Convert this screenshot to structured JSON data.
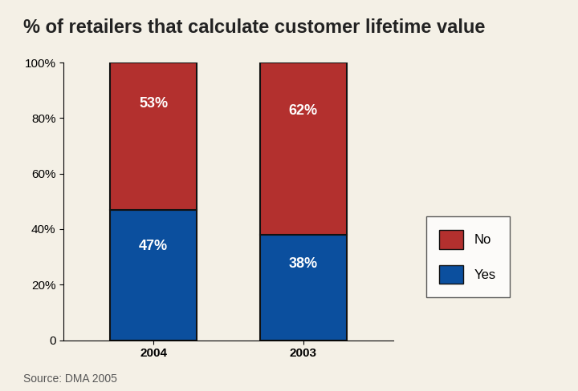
{
  "chart_data": {
    "type": "bar",
    "title": "% of retailers that calculate customer lifetime value",
    "categories": [
      "2004",
      "2003"
    ],
    "series": [
      {
        "name": "Yes",
        "color": "#0b4f9e",
        "values": [
          47,
          38
        ],
        "value_labels": [
          "47%",
          "38%"
        ]
      },
      {
        "name": "No",
        "color": "#b3302e",
        "values": [
          53,
          62
        ],
        "value_labels": [
          "53%",
          "62%"
        ]
      }
    ],
    "stacked": true,
    "data_labels": true,
    "legend": "right",
    "ylim": [
      0,
      100
    ],
    "yticks": [
      0,
      {
        "value": 20,
        "label": "20%"
      },
      {
        "value": 40,
        "label": "40%"
      },
      {
        "value": 60,
        "label": "60%"
      },
      {
        "value": 80,
        "label": "80%"
      },
      {
        "value": 100,
        "label": "100%"
      }
    ],
    "annotations": [
      "Source: DMA 2005"
    ]
  }
}
